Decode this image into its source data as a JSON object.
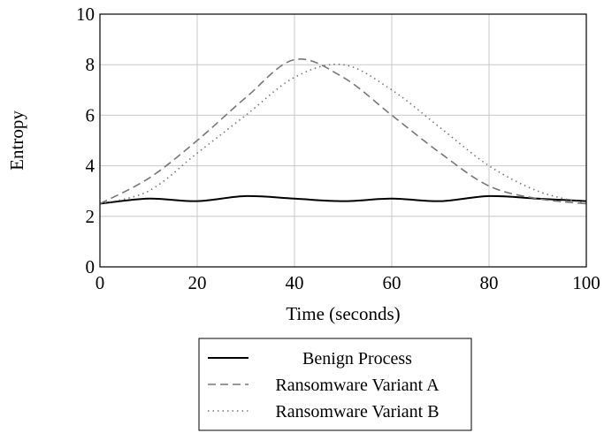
{
  "chart_data": {
    "type": "line",
    "title": "",
    "xlabel": "Time (seconds)",
    "ylabel": "Entropy",
    "xlim": [
      0,
      100
    ],
    "ylim": [
      0,
      10
    ],
    "xticks": [
      0,
      20,
      40,
      60,
      80,
      100
    ],
    "yticks": [
      0,
      2,
      4,
      6,
      8,
      10
    ],
    "xtick_labels": [
      "0",
      "20",
      "40",
      "60",
      "80",
      "100"
    ],
    "ytick_labels": [
      "0",
      "2",
      "4",
      "6",
      "8",
      "10"
    ],
    "grid": true,
    "legend_position": "below",
    "series": [
      {
        "name": "Benign Process",
        "style": "solid",
        "color": "#000000",
        "x": [
          0,
          10,
          20,
          30,
          40,
          50,
          60,
          70,
          80,
          90,
          100
        ],
        "y": [
          2.5,
          2.7,
          2.6,
          2.8,
          2.7,
          2.6,
          2.7,
          2.6,
          2.8,
          2.7,
          2.6
        ]
      },
      {
        "name": "Ransomware Variant A",
        "style": "dashed",
        "color": "#777777",
        "x": [
          0,
          10,
          20,
          30,
          40,
          50,
          60,
          70,
          80,
          90,
          100
        ],
        "y": [
          2.5,
          3.5,
          5.0,
          6.7,
          8.2,
          7.5,
          6.0,
          4.5,
          3.2,
          2.7,
          2.5
        ]
      },
      {
        "name": "Ransomware Variant B",
        "style": "dotted",
        "color": "#777777",
        "x": [
          0,
          10,
          20,
          30,
          40,
          50,
          60,
          70,
          80,
          90,
          100
        ],
        "y": [
          2.5,
          3.0,
          4.5,
          6.0,
          7.5,
          8.0,
          7.0,
          5.5,
          4.0,
          3.0,
          2.5
        ]
      }
    ]
  }
}
